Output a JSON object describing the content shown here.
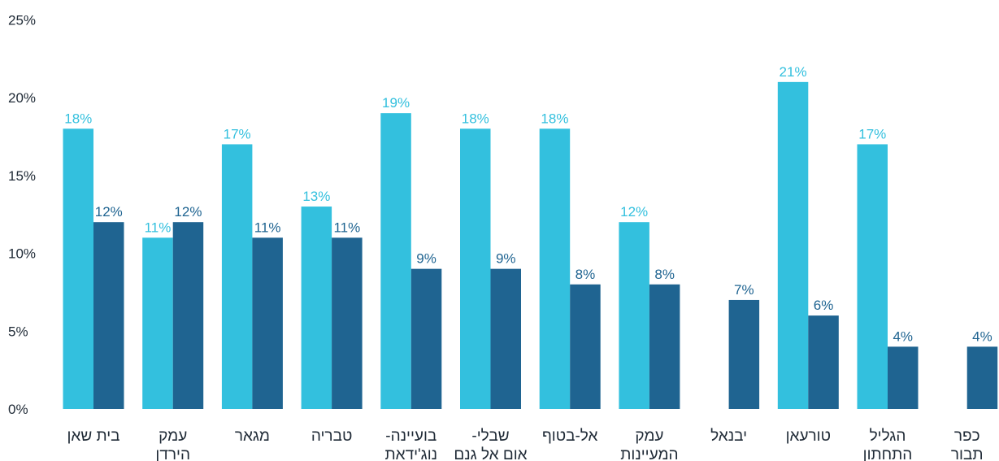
{
  "chart_data": {
    "type": "bar",
    "categories": [
      [
        "בית שאן"
      ],
      [
        "עמק",
        "הירדן"
      ],
      [
        "מגאר"
      ],
      [
        "טבריה"
      ],
      [
        "בועיינה-",
        "נוג'ידאת"
      ],
      [
        "שבלי-",
        "אום אל גנם"
      ],
      [
        "אל-בטוף"
      ],
      [
        "עמק",
        "המעיינות"
      ],
      [
        "יבנאל"
      ],
      [
        "טורעאן"
      ],
      [
        "הגליל",
        "התחתון"
      ],
      [
        "כפר",
        "תבור"
      ]
    ],
    "series": [
      {
        "color": "#33c0de",
        "values": [
          18,
          11,
          17,
          13,
          19,
          18,
          18,
          12,
          null,
          21,
          17,
          null
        ],
        "labels": [
          "18%",
          "11%",
          "17%",
          "13%",
          "19%",
          "18%",
          "18%",
          "12%",
          null,
          "21%",
          "17%",
          null
        ]
      },
      {
        "color": "#1f6491",
        "values": [
          12,
          12,
          11,
          11,
          9,
          9,
          8,
          8,
          7,
          6,
          4,
          4
        ],
        "labels": [
          "12%",
          "12%",
          "11%",
          "11%",
          "9%",
          "9%",
          "8%",
          "8%",
          "7%",
          "6%",
          "4%",
          "4%"
        ]
      }
    ],
    "ylim": [
      0,
      25
    ],
    "yticks": [
      "0%",
      "5%",
      "10%",
      "15%",
      "20%",
      "25%"
    ],
    "title": "",
    "xlabel": "",
    "ylabel": "",
    "grid": false,
    "legend": "none"
  }
}
